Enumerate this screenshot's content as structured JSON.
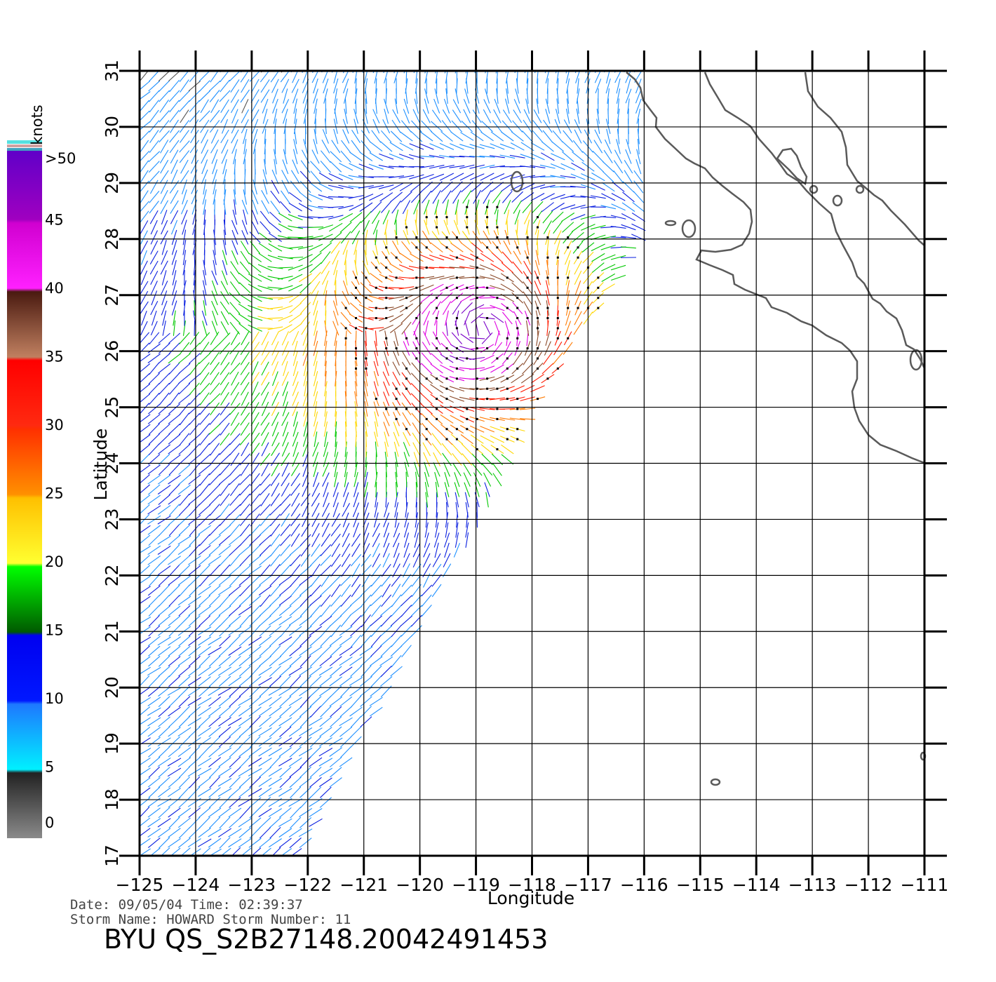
{
  "colorbar": {
    "title": "knots",
    "labels": [
      ">50",
      "45",
      "40",
      "35",
      "30",
      "25",
      "20",
      "15",
      "10",
      "5",
      "0"
    ],
    "values": [
      50,
      45,
      40,
      35,
      30,
      25,
      20,
      15,
      10,
      5,
      0
    ]
  },
  "axes": {
    "xlabel": "Longitude",
    "ylabel": "Latitude",
    "lon_ticks": [
      "−125",
      "−124",
      "−123",
      "−122",
      "−121",
      "−120",
      "−119",
      "−118",
      "−117",
      "−116",
      "−115",
      "−114",
      "−113",
      "−112",
      "−111"
    ],
    "lat_ticks": [
      "31",
      "30",
      "29",
      "28",
      "27",
      "26",
      "25",
      "24",
      "23",
      "22",
      "21",
      "20",
      "19",
      "18",
      "17"
    ]
  },
  "info": {
    "date_line": "Date:  09/05/04   Time:  02:39:37",
    "storm_line": "Storm  Name:  HOWARD    Storm  Number:  11",
    "product": "BYU  QS_S2B27148.20042491453"
  },
  "chart_data": {
    "type": "map",
    "lon_range": [
      -125,
      -111
    ],
    "lat_range": [
      17,
      31
    ],
    "grid": true,
    "legend_position": "left",
    "color_scale": [
      {
        "from": 0,
        "to": 5,
        "color": "#555555"
      },
      {
        "from": 5,
        "to": 10,
        "color": "#1e90ff"
      },
      {
        "from": 10,
        "to": 15,
        "color": "#0a1fe0"
      },
      {
        "from": 15,
        "to": 20,
        "color": "#00c800"
      },
      {
        "from": 20,
        "to": 25,
        "color": "#ffd700"
      },
      {
        "from": 25,
        "to": 30,
        "color": "#ff7a00"
      },
      {
        "from": 30,
        "to": 35,
        "color": "#ff1a00"
      },
      {
        "from": 35,
        "to": 40,
        "color": "#8b4a2a"
      },
      {
        "from": 40,
        "to": 45,
        "color": "#e000e0"
      },
      {
        "from": 45,
        "to": 50,
        "color": "#7a00c8"
      }
    ],
    "storm_center": {
      "lon": -118.9,
      "lat": 26.4
    }
  }
}
